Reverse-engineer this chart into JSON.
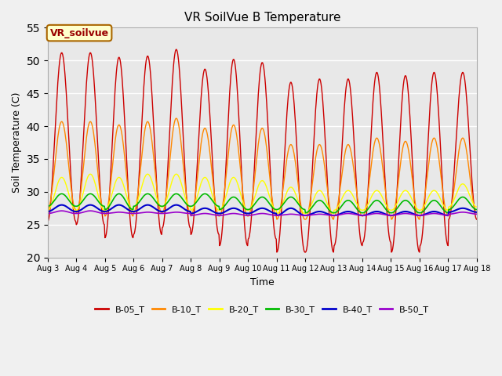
{
  "title": "VR SoilVue B Temperature",
  "xlabel": "Time",
  "ylabel": "Soil Temperature (C)",
  "ylim": [
    20,
    55
  ],
  "yticks": [
    20,
    25,
    30,
    35,
    40,
    45,
    50,
    55
  ],
  "x_tick_labels": [
    "Aug 3",
    "Aug 4",
    "Aug 5",
    "Aug 6",
    "Aug 7",
    "Aug 8",
    "Aug 9",
    "Aug 10",
    "Aug 11",
    "Aug 12",
    "Aug 13",
    "Aug 14",
    "Aug 15",
    "Aug 16",
    "Aug 17",
    "Aug 18"
  ],
  "annotation_text": "VR_soilvue",
  "annotation_color": "#990000",
  "annotation_border": "#aa6600",
  "annotation_bg": "#ffffcc",
  "fig_bg": "#f0f0f0",
  "plot_bg": "#e8e8e8",
  "grid_color": "#ffffff",
  "legend_entries": [
    "B-05_T",
    "B-10_T",
    "B-20_T",
    "B-30_T",
    "B-40_T",
    "B-50_T"
  ],
  "line_colors": [
    "#cc0000",
    "#ff8800",
    "#ffff00",
    "#00bb00",
    "#0000cc",
    "#9900cc"
  ],
  "line_widths": [
    1.0,
    1.0,
    1.0,
    1.2,
    1.5,
    1.2
  ],
  "n_days": 15,
  "pts_per_day": 48,
  "b05_peaks": [
    51.2,
    51.2,
    50.5,
    50.7,
    51.7,
    48.7,
    50.2,
    49.7,
    46.7,
    47.2,
    47.2,
    48.2,
    47.7,
    48.2,
    48.2
  ],
  "b05_troughs": [
    25.5,
    25.0,
    23.0,
    23.5,
    24.5,
    23.5,
    21.8,
    22.8,
    20.8,
    20.8,
    21.8,
    22.3,
    20.8,
    21.8,
    25.8
  ],
  "b10_peaks": [
    40.7,
    40.7,
    40.2,
    40.7,
    41.2,
    39.7,
    40.2,
    39.7,
    37.2,
    37.2,
    37.2,
    38.2,
    37.7,
    38.2,
    38.2
  ],
  "b10_troughs": [
    27.3,
    26.8,
    26.3,
    26.8,
    26.8,
    26.3,
    26.3,
    26.3,
    25.8,
    25.8,
    26.3,
    26.3,
    25.8,
    26.3,
    26.8
  ],
  "b20_peaks": [
    32.2,
    32.7,
    32.2,
    32.7,
    32.7,
    32.2,
    32.2,
    31.7,
    30.7,
    30.2,
    30.2,
    30.2,
    30.2,
    30.2,
    31.2
  ],
  "b20_troughs": [
    27.2,
    27.2,
    27.2,
    27.7,
    27.7,
    27.2,
    27.2,
    27.2,
    26.7,
    26.7,
    27.2,
    27.2,
    27.2,
    27.2,
    27.7
  ],
  "b30_peaks": [
    29.7,
    29.7,
    29.7,
    29.7,
    29.7,
    29.7,
    29.2,
    29.2,
    29.2,
    28.7,
    28.7,
    28.7,
    28.7,
    28.7,
    29.2
  ],
  "b30_troughs": [
    27.8,
    27.8,
    27.3,
    27.8,
    27.8,
    27.8,
    27.3,
    27.3,
    27.3,
    26.8,
    26.8,
    26.8,
    26.8,
    26.8,
    27.3
  ],
  "b40_peaks": [
    28.0,
    28.0,
    28.0,
    28.0,
    28.0,
    27.5,
    27.5,
    27.5,
    27.5,
    27.0,
    27.0,
    27.0,
    27.0,
    27.0,
    27.5
  ],
  "b40_troughs": [
    27.0,
    27.0,
    27.0,
    27.0,
    27.0,
    26.7,
    26.7,
    26.7,
    26.4,
    26.4,
    26.4,
    26.4,
    26.4,
    26.4,
    26.9
  ],
  "b50_peaks": [
    27.1,
    27.1,
    26.9,
    26.9,
    26.9,
    26.7,
    26.7,
    26.7,
    26.6,
    26.6,
    26.7,
    26.7,
    26.7,
    26.7,
    26.9
  ],
  "b50_troughs": [
    26.7,
    26.7,
    26.7,
    26.7,
    26.7,
    26.4,
    26.4,
    26.4,
    26.4,
    26.4,
    26.4,
    26.4,
    26.4,
    26.4,
    26.6
  ]
}
